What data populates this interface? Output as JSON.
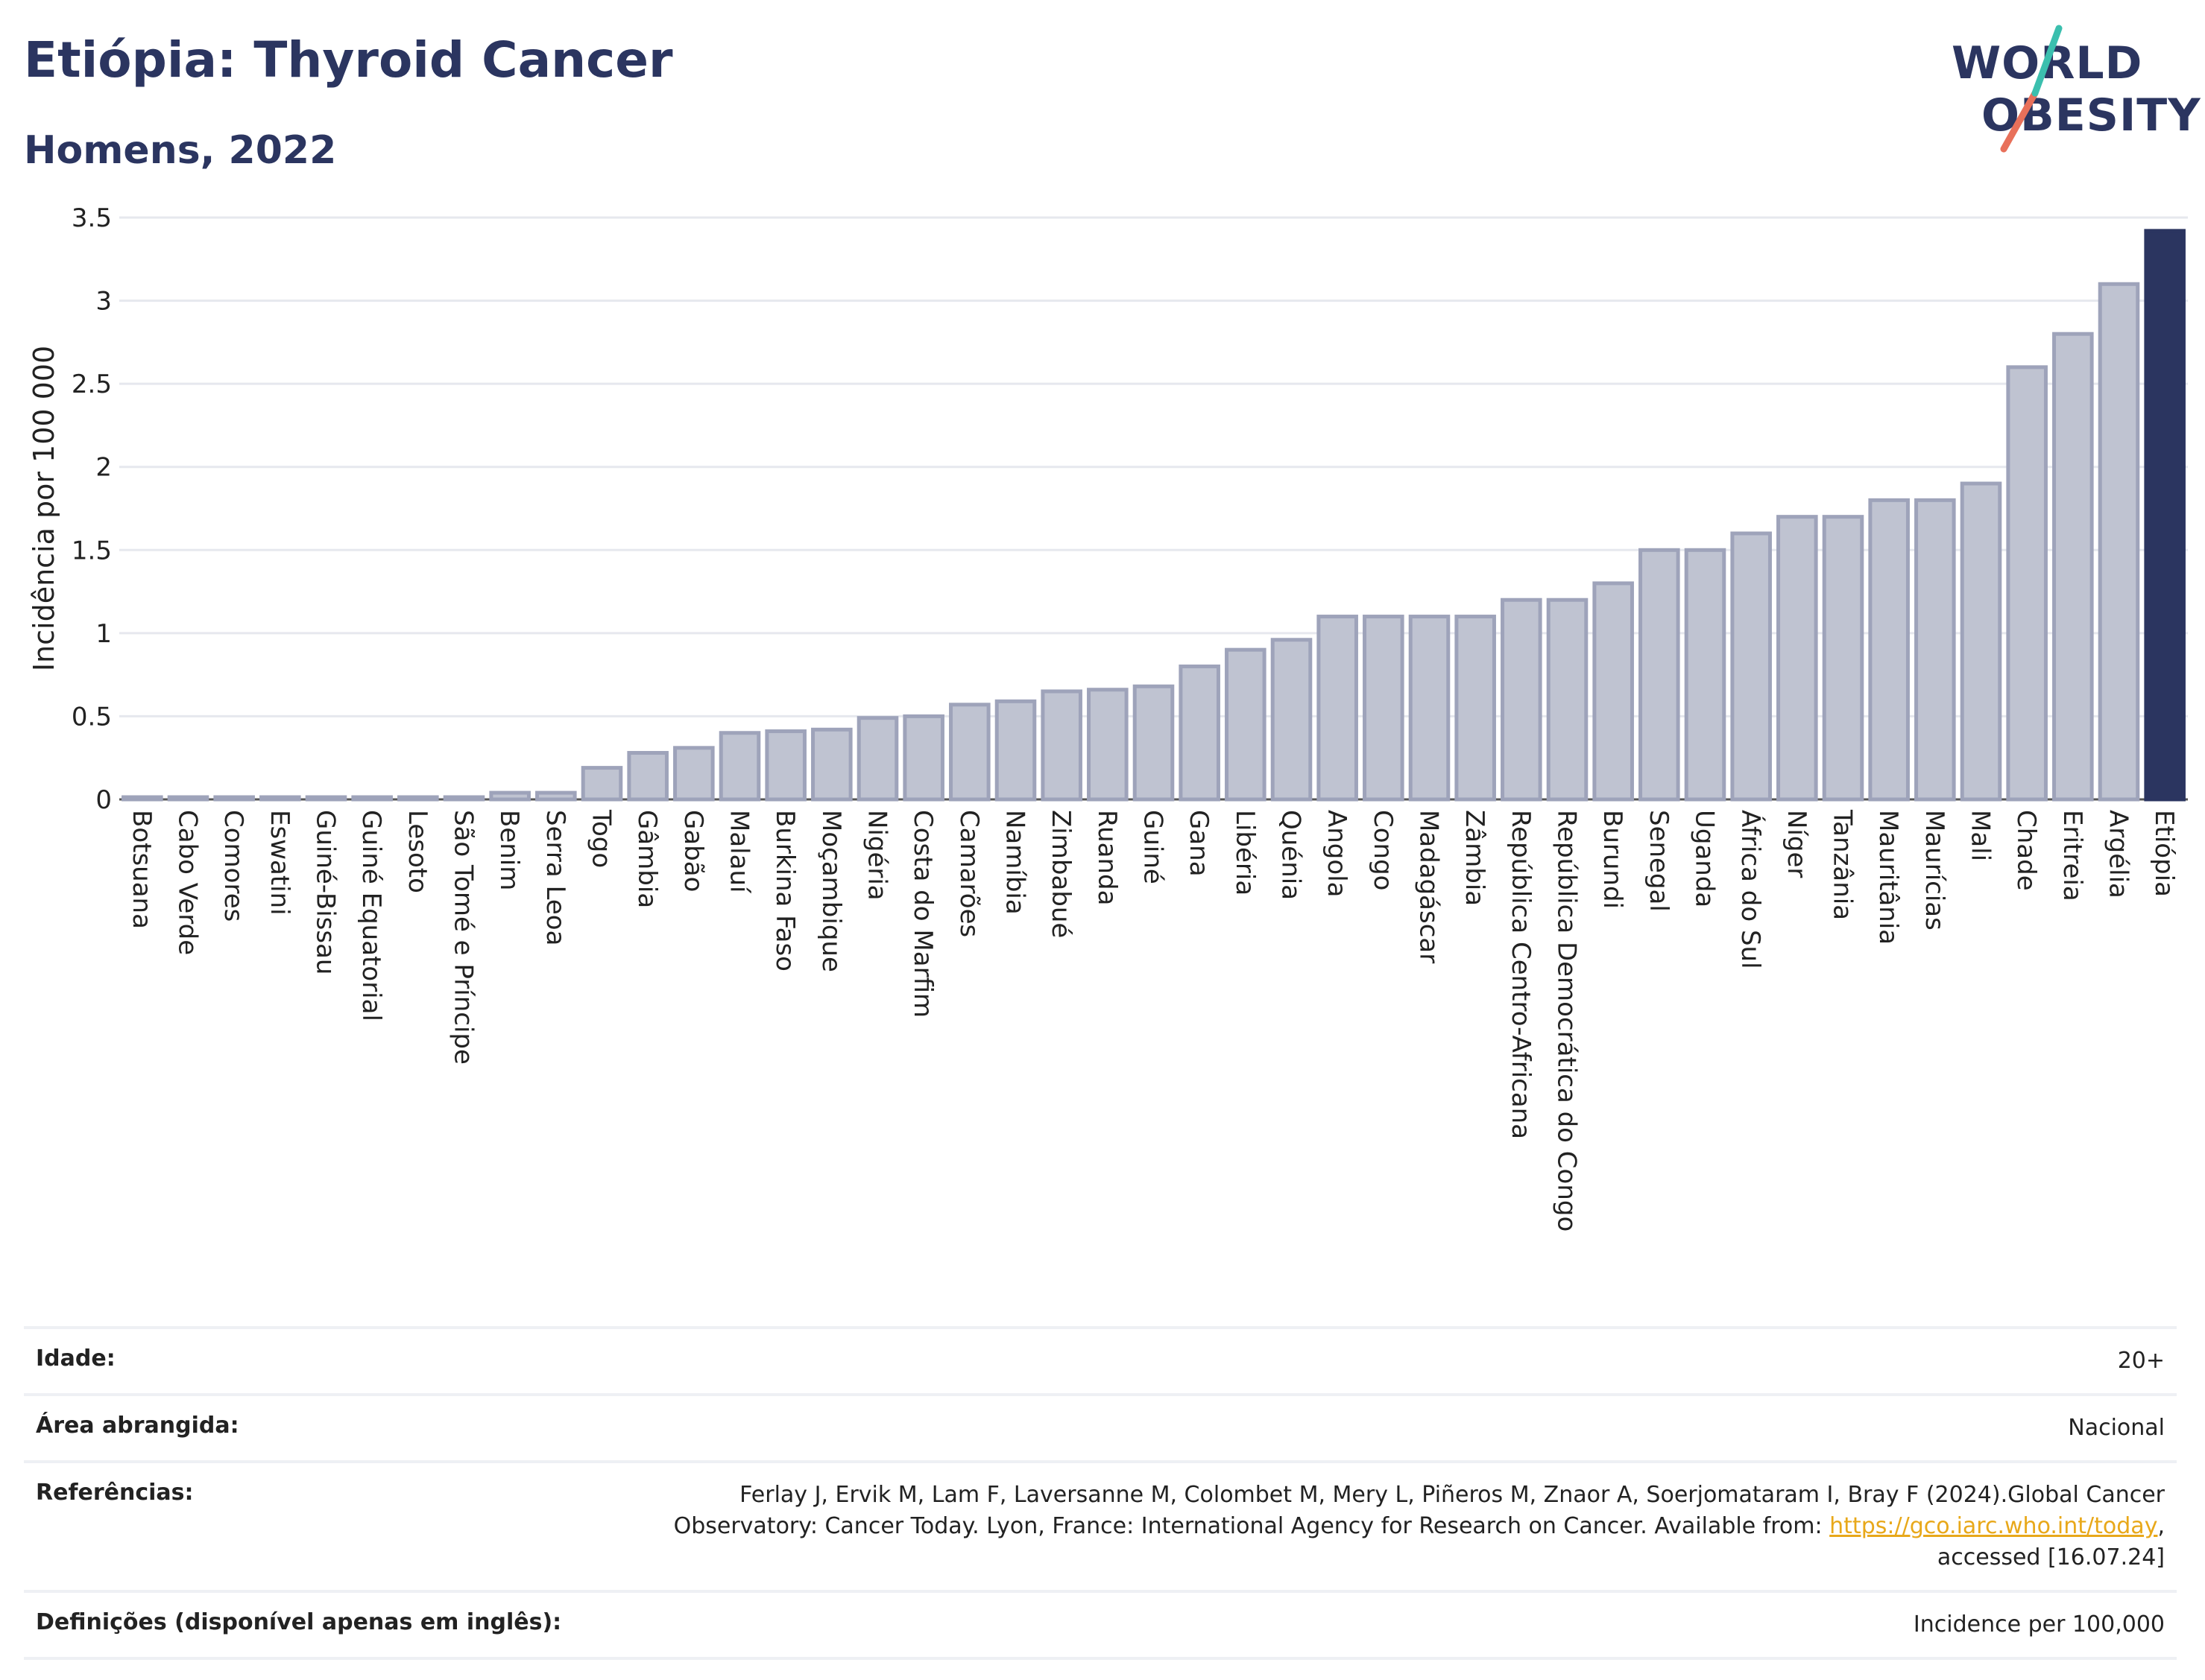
{
  "title": "Etiópia: Thyroid Cancer",
  "subtitle": "Homens, 2022",
  "logo": {
    "line1": "WORLD",
    "line2": "OBESITY"
  },
  "colors": {
    "bar": "#bfc3d1",
    "bar_stroke": "#9ea3ba",
    "highlight": "#2b3560",
    "text": "#2b3560",
    "grid": "#e6e8ee",
    "link": "#e8a81a"
  },
  "chart_data": {
    "type": "bar",
    "ylabel": "Incidência por 100 000",
    "ylim": [
      0,
      3.5
    ],
    "yticks": [
      "0",
      "0.5",
      "1",
      "1.5",
      "2",
      "2.5",
      "3",
      "3.5"
    ],
    "grid": true,
    "highlight": "Etiópia",
    "categories": [
      "Botsuana",
      "Cabo Verde",
      "Comores",
      "Eswatini",
      "Guiné-Bissau",
      "Guiné Equatorial",
      "Lesoto",
      "São Tomé e Príncipe",
      "Benim",
      "Serra Leoa",
      "Togo",
      "Gâmbia",
      "Gabão",
      "Malauí",
      "Burkina Faso",
      "Moçambique",
      "Nigéria",
      "Costa do Marfim",
      "Camarões",
      "Namíbia",
      "Zimbabué",
      "Ruanda",
      "Guiné",
      "Gana",
      "Libéria",
      "Quénia",
      "Angola",
      "Congo",
      "Madagáscar",
      "Zâmbia",
      "República Centro-Africana",
      "República Democrática do Congo",
      "Burundi",
      "Senegal",
      "Uganda",
      "África do Sul",
      "Níger",
      "Tanzânia",
      "Mauritânia",
      "Maurícias",
      "Mali",
      "Chade",
      "Eritreia",
      "Argélia",
      "Etiópia"
    ],
    "values": [
      0.01,
      0.01,
      0.01,
      0.01,
      0.01,
      0.01,
      0.01,
      0.01,
      0.04,
      0.04,
      0.19,
      0.28,
      0.31,
      0.4,
      0.41,
      0.42,
      0.49,
      0.5,
      0.57,
      0.59,
      0.65,
      0.66,
      0.68,
      0.8,
      0.9,
      0.96,
      1.1,
      1.1,
      1.1,
      1.1,
      1.2,
      1.2,
      1.3,
      1.5,
      1.5,
      1.6,
      1.7,
      1.7,
      1.8,
      1.8,
      1.9,
      2.6,
      2.8,
      3.1,
      3.42
    ]
  },
  "meta": {
    "age_label": "Idade:",
    "age_value": "20+",
    "area_label": "Área abrangida:",
    "area_value": "Nacional",
    "ref_label": "Referências:",
    "ref_text": "Ferlay J, Ervik M, Lam F, Laversanne M, Colombet M, Mery L, Piñeros M, Znaor A, Soerjomataram I, Bray F (2024).Global Cancer Observatory: Cancer Today. Lyon, France: International Agency for Research on Cancer. Available from: ",
    "ref_link": "https://gco.iarc.who.int/today",
    "ref_tail": ", accessed [16.07.24]",
    "def_label": "Definições (disponível apenas em inglês):",
    "def_value": "Incidence per 100,000"
  }
}
